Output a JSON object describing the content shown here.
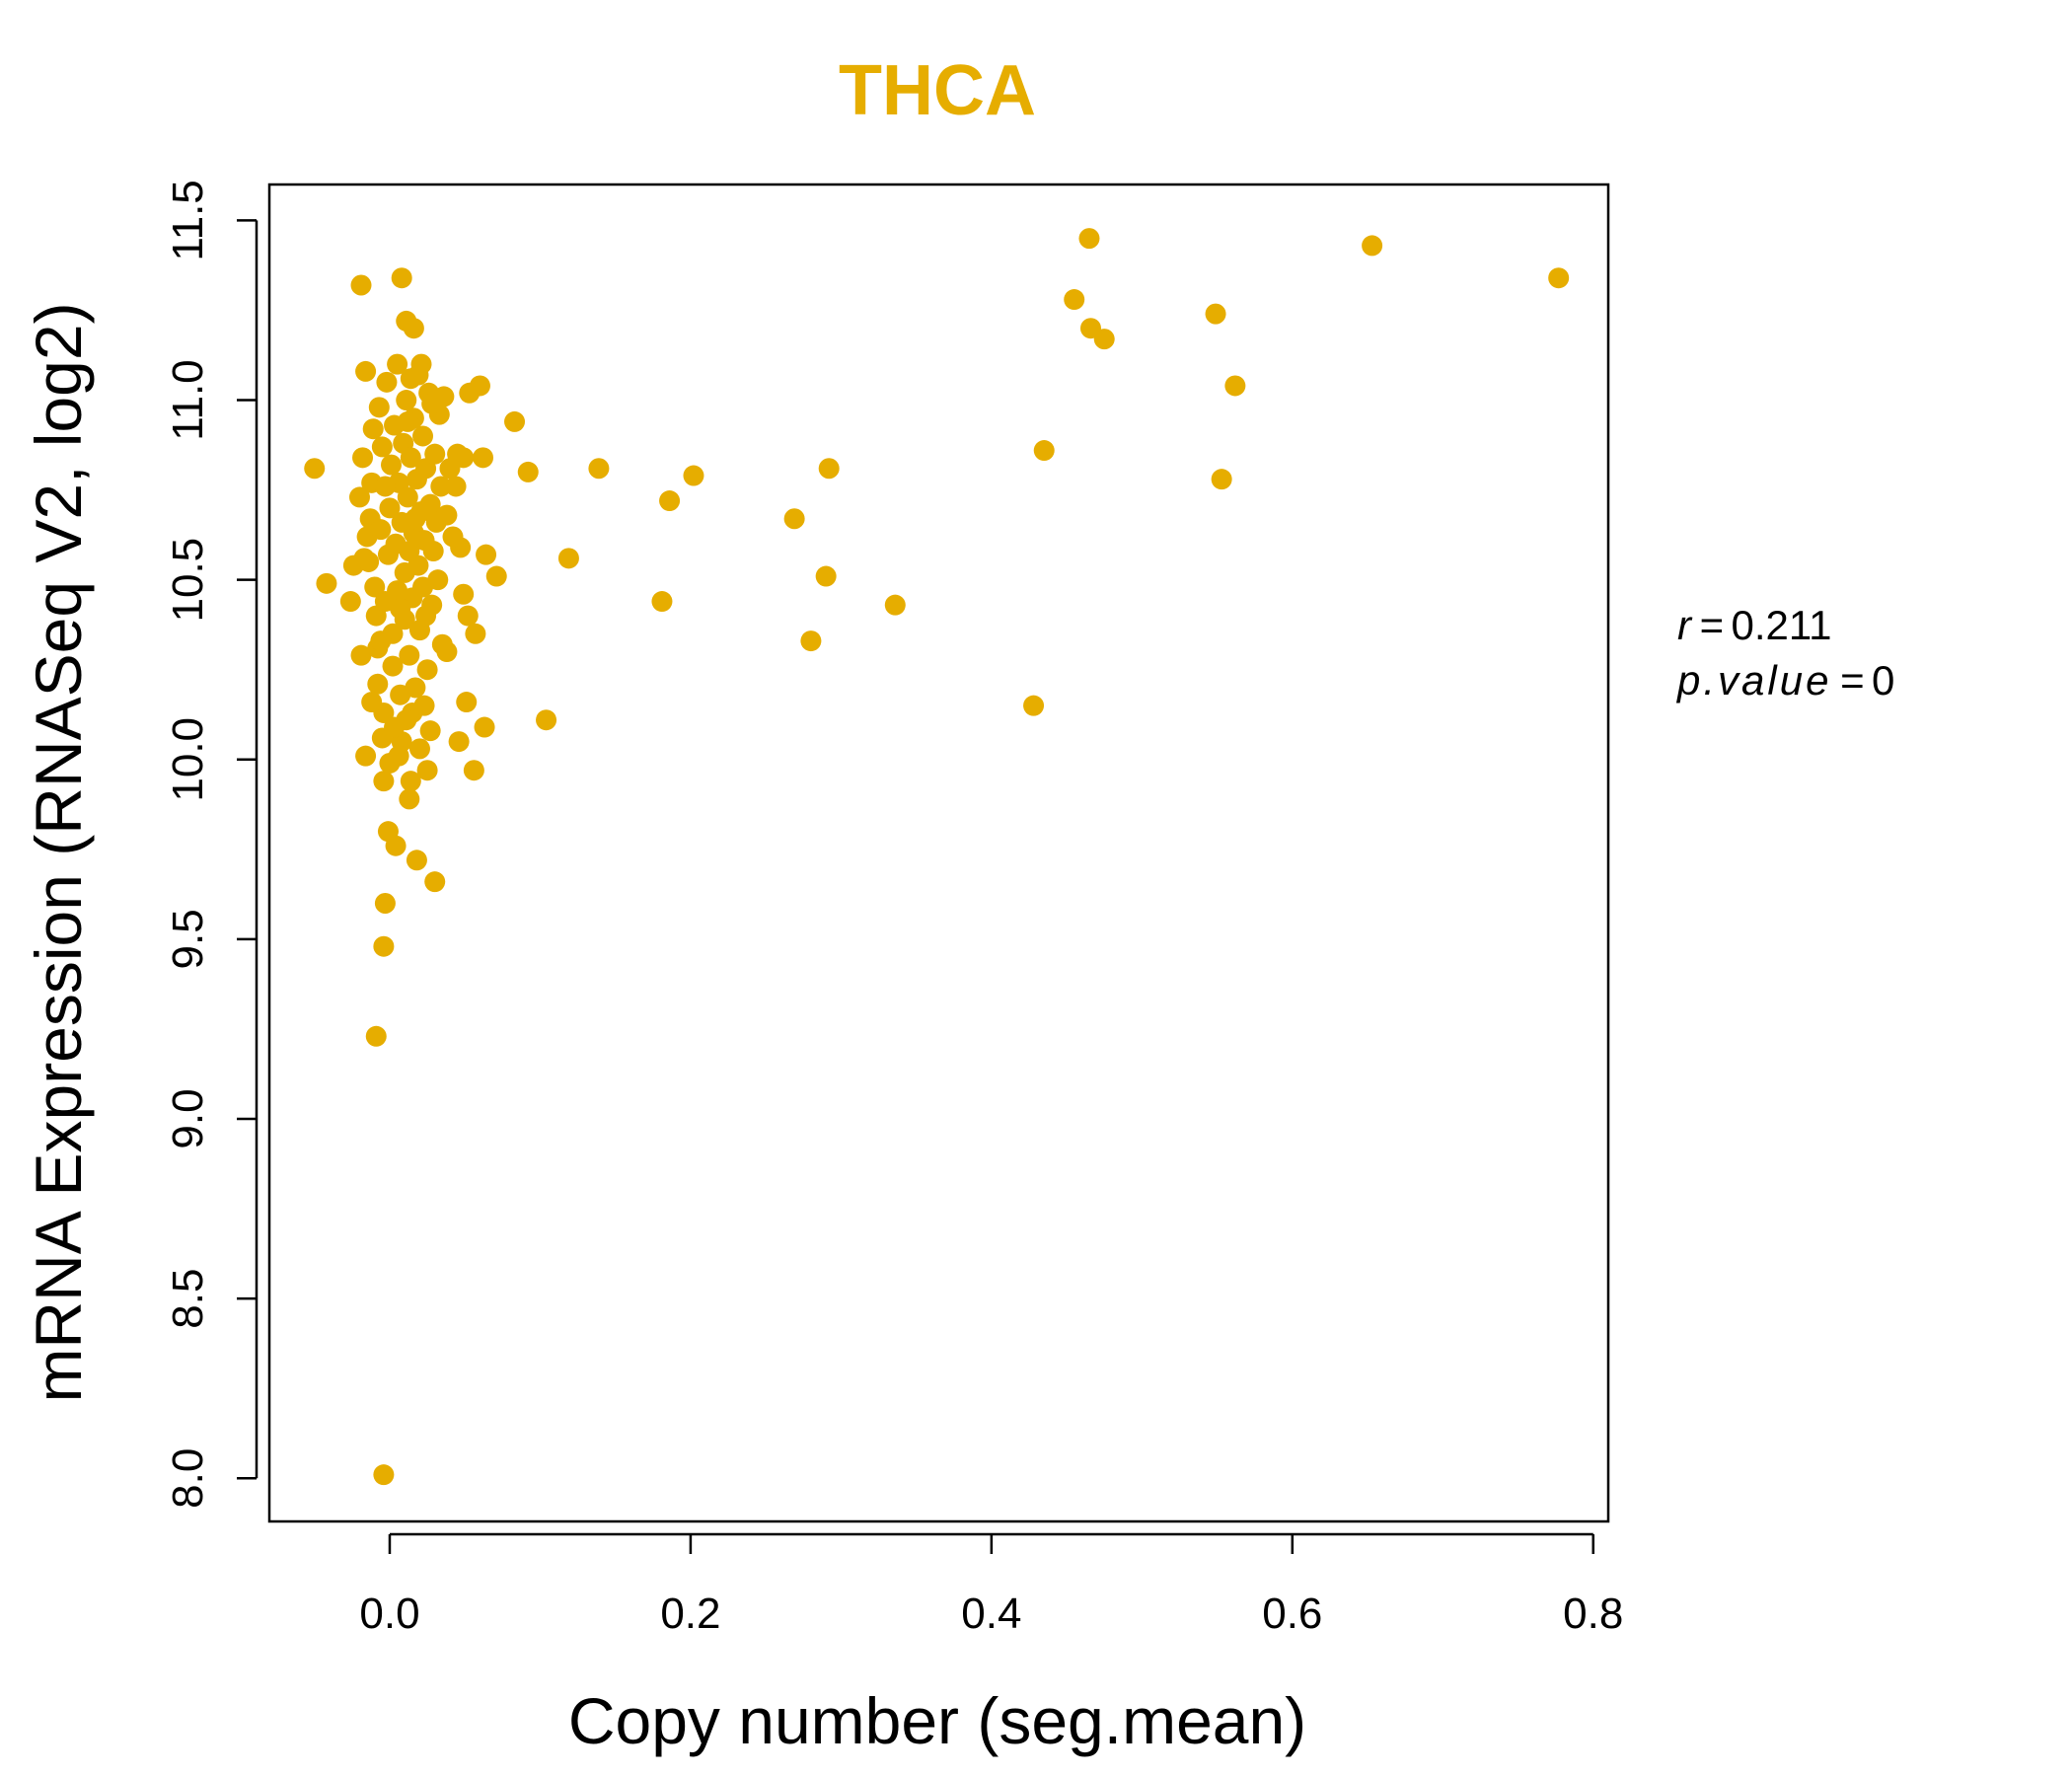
{
  "chart_data": {
    "type": "scatter",
    "title": "THCA",
    "xlabel": "Copy number (seg.mean)",
    "ylabel": "mRNA Expression (RNASeq V2, log2)",
    "xlim": [
      -0.08,
      0.81
    ],
    "ylim": [
      7.88,
      11.6
    ],
    "x_ticks": [
      0.0,
      0.2,
      0.4,
      0.6,
      0.8
    ],
    "x_tick_labels": [
      "0.0",
      "0.2",
      "0.4",
      "0.6",
      "0.8"
    ],
    "y_ticks": [
      8.0,
      8.5,
      9.0,
      9.5,
      10.0,
      10.5,
      11.0,
      11.5
    ],
    "y_tick_labels": [
      "8.0",
      "8.5",
      "9.0",
      "9.5",
      "10.0",
      "10.5",
      "11.0",
      "11.5"
    ],
    "grid": false,
    "colors": {
      "points": "#E6AD00",
      "title": "#E6AD00",
      "axis": "#000000"
    },
    "annotations": {
      "r_label": "r",
      "r_value": "0.211",
      "p_label": "p.value",
      "p_value": "0"
    },
    "series": [
      {
        "name": "THCA",
        "points": [
          [
            -0.05,
            10.81
          ],
          [
            -0.042,
            10.49
          ],
          [
            -0.026,
            10.44
          ],
          [
            -0.024,
            10.54
          ],
          [
            -0.019,
            10.29
          ],
          [
            -0.019,
            11.32
          ],
          [
            -0.016,
            11.08
          ],
          [
            -0.016,
            10.01
          ],
          [
            -0.009,
            9.23
          ],
          [
            -0.004,
            8.01
          ],
          [
            -0.004,
            9.48
          ],
          [
            -0.003,
            9.6
          ],
          [
            -0.001,
            9.8
          ],
          [
            0.008,
            11.34
          ],
          [
            0.011,
            11.22
          ],
          [
            0.016,
            11.2
          ],
          [
            0.004,
            9.76
          ],
          [
            0.018,
            9.72
          ],
          [
            0.03,
            9.66
          ],
          [
            0.013,
            9.89
          ],
          [
            -0.004,
            9.94
          ],
          [
            0.014,
            9.94
          ],
          [
            0.025,
            9.97
          ],
          [
            0.0,
            9.99
          ],
          [
            0.008,
            10.05
          ],
          [
            0.046,
            10.05
          ],
          [
            0.056,
            9.97
          ],
          [
            0.063,
            10.09
          ],
          [
            0.051,
            10.16
          ],
          [
            0.027,
            10.08
          ],
          [
            0.057,
            10.35
          ],
          [
            0.052,
            10.4
          ],
          [
            0.049,
            10.46
          ],
          [
            0.071,
            10.51
          ],
          [
            0.064,
            10.57
          ],
          [
            0.047,
            10.59
          ],
          [
            0.038,
            10.3
          ],
          [
            0.062,
            10.84
          ],
          [
            0.049,
            10.84
          ],
          [
            0.053,
            11.02
          ],
          [
            0.06,
            11.04
          ],
          [
            0.083,
            10.94
          ],
          [
            0.092,
            10.8
          ],
          [
            0.104,
            10.11
          ],
          [
            0.119,
            10.56
          ],
          [
            0.139,
            10.81
          ],
          [
            0.181,
            10.44
          ],
          [
            0.186,
            10.72
          ],
          [
            0.202,
            10.79
          ],
          [
            0.269,
            10.67
          ],
          [
            0.28,
            10.33
          ],
          [
            0.29,
            10.51
          ],
          [
            0.292,
            10.81
          ],
          [
            0.336,
            10.43
          ],
          [
            0.428,
            10.15
          ],
          [
            0.435,
            10.86
          ],
          [
            0.455,
            11.28
          ],
          [
            0.465,
            11.45
          ],
          [
            0.466,
            11.2
          ],
          [
            0.475,
            11.17
          ],
          [
            0.549,
            11.24
          ],
          [
            0.553,
            10.78
          ],
          [
            0.562,
            11.04
          ],
          [
            0.653,
            11.43
          ],
          [
            0.777,
            11.34
          ],
          [
            -0.02,
            10.73
          ],
          [
            -0.018,
            10.84
          ],
          [
            -0.015,
            10.62
          ],
          [
            -0.014,
            10.55
          ],
          [
            -0.013,
            10.67
          ],
          [
            -0.012,
            10.77
          ],
          [
            -0.011,
            10.92
          ],
          [
            -0.01,
            10.48
          ],
          [
            -0.009,
            10.4
          ],
          [
            -0.008,
            10.31
          ],
          [
            -0.008,
            10.21
          ],
          [
            -0.007,
            10.98
          ],
          [
            -0.006,
            10.64
          ],
          [
            -0.005,
            10.87
          ],
          [
            -0.004,
            10.13
          ],
          [
            -0.003,
            10.44
          ],
          [
            -0.002,
            11.05
          ],
          [
            -0.001,
            10.57
          ],
          [
            0.0,
            10.7
          ],
          [
            0.001,
            10.82
          ],
          [
            0.002,
            10.35
          ],
          [
            0.002,
            10.26
          ],
          [
            0.003,
            10.93
          ],
          [
            0.004,
            10.6
          ],
          [
            0.005,
            10.47
          ],
          [
            0.005,
            11.1
          ],
          [
            0.006,
            10.77
          ],
          [
            0.007,
            10.18
          ],
          [
            0.008,
            10.66
          ],
          [
            0.009,
            10.88
          ],
          [
            0.01,
            10.52
          ],
          [
            0.01,
            10.39
          ],
          [
            0.011,
            11.0
          ],
          [
            0.012,
            10.73
          ],
          [
            0.013,
            10.29
          ],
          [
            0.013,
            10.58
          ],
          [
            0.014,
            10.84
          ],
          [
            0.015,
            10.45
          ],
          [
            0.016,
            10.95
          ],
          [
            0.016,
            10.63
          ],
          [
            0.017,
            10.2
          ],
          [
            0.018,
            10.78
          ],
          [
            0.019,
            10.54
          ],
          [
            0.019,
            11.07
          ],
          [
            0.02,
            10.36
          ],
          [
            0.021,
            10.69
          ],
          [
            0.022,
            10.9
          ],
          [
            0.022,
            10.48
          ],
          [
            0.023,
            10.61
          ],
          [
            0.024,
            10.81
          ],
          [
            0.025,
            10.25
          ],
          [
            0.026,
            11.02
          ],
          [
            0.027,
            10.71
          ],
          [
            0.028,
            10.43
          ],
          [
            0.029,
            10.58
          ],
          [
            0.03,
            10.85
          ],
          [
            0.031,
            10.66
          ],
          [
            0.032,
            10.5
          ],
          [
            0.033,
            10.96
          ],
          [
            0.034,
            10.76
          ],
          [
            0.035,
            10.32
          ],
          [
            0.036,
            11.01
          ],
          [
            0.038,
            10.68
          ],
          [
            0.04,
            10.81
          ],
          [
            0.042,
            10.62
          ],
          [
            0.044,
            10.76
          ],
          [
            0.045,
            10.85
          ],
          [
            0.015,
            10.13
          ],
          [
            0.02,
            10.03
          ],
          [
            0.006,
            10.01
          ],
          [
            -0.005,
            10.06
          ],
          [
            0.011,
            10.11
          ],
          [
            -0.012,
            10.16
          ],
          [
            0.023,
            10.15
          ],
          [
            0.003,
            10.09
          ],
          [
            -0.017,
            10.56
          ],
          [
            -0.003,
            10.76
          ],
          [
            0.007,
            10.42
          ],
          [
            0.012,
            10.94
          ],
          [
            0.017,
            10.67
          ],
          [
            -0.006,
            10.33
          ],
          [
            0.024,
            10.4
          ],
          [
            0.028,
            10.99
          ],
          [
            0.014,
            11.06
          ],
          [
            0.021,
            11.1
          ]
        ]
      }
    ]
  }
}
